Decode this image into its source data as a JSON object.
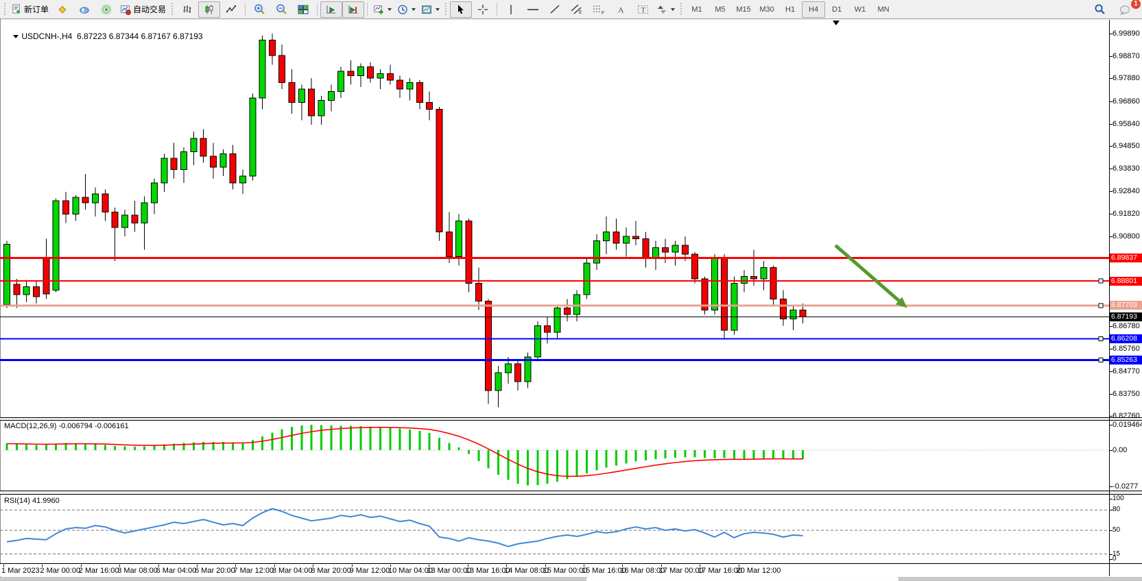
{
  "toolbar": {
    "new_order_label": "新订单",
    "autotrading_label": "自动交易",
    "chat_badge": "1",
    "timeframes": [
      "M1",
      "M5",
      "M15",
      "M30",
      "H1",
      "H4",
      "D1",
      "W1",
      "MN"
    ],
    "selected_timeframe": "H4"
  },
  "chart": {
    "title_symbol": "USDCNH-,H4",
    "title_ohlc": "6.87223 6.87344 6.87167 6.87193"
  },
  "macd_panel": {
    "label": "MACD(12,26,9) -0.006794 -0.006161"
  },
  "rsi_panel": {
    "label": "RSI(14) 41.9960"
  },
  "colors": {
    "bull": "#00d800",
    "bear": "#f40000",
    "candle_outline": "#000000",
    "level_red": "#ff0000",
    "level_blue": "#0000ff",
    "level_salmon": "#e9a28f",
    "bid_line": "#000000",
    "macd_hist": "#00cc00",
    "macd_signal": "#ff0000",
    "rsi_line": "#3f86d8",
    "arrow": "#56992e",
    "badge": "#e0472f"
  },
  "chart_data": {
    "main": {
      "type": "candlestick",
      "symbol": "USDCNH-",
      "timeframe": "H4",
      "last_bid": 6.87193,
      "candles": [
        [
          6.8775,
          6.906,
          6.876,
          6.9045
        ],
        [
          6.8866,
          6.889,
          6.876,
          6.882
        ],
        [
          6.882,
          6.8885,
          6.8785,
          6.8855
        ],
        [
          6.8855,
          6.888,
          6.878,
          6.881
        ],
        [
          6.8985,
          6.907,
          6.88,
          6.8822
        ],
        [
          6.884,
          6.925,
          6.883,
          6.924
        ],
        [
          6.924,
          6.928,
          6.914,
          6.918
        ],
        [
          6.918,
          6.9265,
          6.915,
          6.9255
        ],
        [
          6.9255,
          6.936,
          6.92,
          6.923
        ],
        [
          6.923,
          6.93,
          6.917,
          6.927
        ],
        [
          6.927,
          6.929,
          6.915,
          6.919
        ],
        [
          6.919,
          6.921,
          6.897,
          6.912
        ],
        [
          6.912,
          6.92,
          6.908,
          6.9175
        ],
        [
          6.9175,
          6.924,
          6.91,
          6.914
        ],
        [
          6.914,
          6.926,
          6.902,
          6.923
        ],
        [
          6.923,
          6.934,
          6.918,
          6.932
        ],
        [
          6.932,
          6.945,
          6.928,
          6.943
        ],
        [
          6.943,
          6.95,
          6.934,
          6.938
        ],
        [
          6.938,
          6.948,
          6.932,
          6.946
        ],
        [
          6.946,
          6.955,
          6.94,
          6.952
        ],
        [
          6.952,
          6.956,
          6.941,
          6.944
        ],
        [
          6.944,
          6.95,
          6.934,
          6.939
        ],
        [
          6.939,
          6.947,
          6.935,
          6.945
        ],
        [
          6.945,
          6.949,
          6.929,
          6.932
        ],
        [
          6.932,
          6.938,
          6.927,
          6.935
        ],
        [
          6.935,
          6.972,
          6.933,
          6.97
        ],
        [
          6.97,
          6.998,
          6.965,
          6.996
        ],
        [
          6.996,
          6.9989,
          6.985,
          6.989
        ],
        [
          6.989,
          6.994,
          6.974,
          6.977
        ],
        [
          6.977,
          6.983,
          6.963,
          6.968
        ],
        [
          6.968,
          6.976,
          6.96,
          6.974
        ],
        [
          6.974,
          6.979,
          6.958,
          6.962
        ],
        [
          6.962,
          6.971,
          6.958,
          6.969
        ],
        [
          6.969,
          6.976,
          6.964,
          6.973
        ],
        [
          6.973,
          6.984,
          6.97,
          6.982
        ],
        [
          6.982,
          6.987,
          6.976,
          6.98
        ],
        [
          6.98,
          6.9855,
          6.975,
          6.984
        ],
        [
          6.984,
          6.986,
          6.977,
          6.979
        ],
        [
          6.979,
          6.983,
          6.974,
          6.981
        ],
        [
          6.981,
          6.985,
          6.976,
          6.978
        ],
        [
          6.978,
          6.98,
          6.97,
          6.974
        ],
        [
          6.974,
          6.979,
          6.969,
          6.977
        ],
        [
          6.977,
          6.978,
          6.965,
          6.968
        ],
        [
          6.968,
          6.973,
          6.96,
          6.965
        ],
        [
          6.965,
          6.966,
          6.906,
          6.91
        ],
        [
          6.91,
          6.919,
          6.896,
          6.899
        ],
        [
          6.899,
          6.918,
          6.895,
          6.915
        ],
        [
          6.915,
          6.916,
          6.883,
          6.887
        ],
        [
          6.887,
          6.894,
          6.875,
          6.879
        ],
        [
          6.879,
          6.88,
          6.833,
          6.839
        ],
        [
          6.839,
          6.85,
          6.8315,
          6.847
        ],
        [
          6.847,
          6.854,
          6.842,
          6.851
        ],
        [
          6.851,
          6.853,
          6.839,
          6.843
        ],
        [
          6.843,
          6.856,
          6.84,
          6.854
        ],
        [
          6.854,
          6.87,
          6.852,
          6.868
        ],
        [
          6.868,
          6.872,
          6.86,
          6.865
        ],
        [
          6.865,
          6.877,
          6.862,
          6.876
        ],
        [
          6.876,
          6.88,
          6.87,
          6.873
        ],
        [
          6.873,
          6.884,
          6.87,
          6.882
        ],
        [
          6.882,
          6.898,
          6.88,
          6.896
        ],
        [
          6.896,
          6.909,
          6.893,
          6.906
        ],
        [
          6.906,
          6.917,
          6.9,
          6.91
        ],
        [
          6.91,
          6.916,
          6.902,
          6.905
        ],
        [
          6.905,
          6.912,
          6.899,
          6.908
        ],
        [
          6.908,
          6.915,
          6.904,
          6.907
        ],
        [
          6.907,
          6.91,
          6.894,
          6.898
        ],
        [
          6.898,
          6.906,
          6.893,
          6.903
        ],
        [
          6.903,
          6.907,
          6.896,
          6.901
        ],
        [
          6.901,
          6.906,
          6.895,
          6.904
        ],
        [
          6.904,
          6.908,
          6.897,
          6.9
        ],
        [
          6.9,
          6.901,
          6.887,
          6.889
        ],
        [
          6.889,
          6.89,
          6.873,
          6.875
        ],
        [
          6.875,
          6.9,
          6.873,
          6.898
        ],
        [
          6.898,
          6.9,
          6.862,
          6.866
        ],
        [
          6.866,
          6.89,
          6.864,
          6.887
        ],
        [
          6.887,
          6.893,
          6.883,
          6.89
        ],
        [
          6.89,
          6.902,
          6.886,
          6.889
        ],
        [
          6.889,
          6.897,
          6.884,
          6.894
        ],
        [
          6.894,
          6.895,
          6.877,
          6.88
        ],
        [
          6.88,
          6.884,
          6.868,
          6.871
        ],
        [
          6.871,
          6.877,
          6.866,
          6.875
        ],
        [
          6.875,
          6.878,
          6.869,
          6.87193
        ]
      ],
      "y_axis": {
        "ticks": [
          {
            "label": "6.99890",
            "value": 6.9989
          },
          {
            "label": "6.98870",
            "value": 6.9887
          },
          {
            "label": "6.97880",
            "value": 6.9788
          },
          {
            "label": "6.96860",
            "value": 6.9686
          },
          {
            "label": "6.95840",
            "value": 6.9584
          },
          {
            "label": "6.94850",
            "value": 6.9485
          },
          {
            "label": "6.93830",
            "value": 6.9383
          },
          {
            "label": "6.92840",
            "value": 6.9284
          },
          {
            "label": "6.91820",
            "value": 6.9182
          },
          {
            "label": "6.90800",
            "value": 6.908
          },
          {
            "label": "6.86780",
            "value": 6.8678
          },
          {
            "label": "6.85760",
            "value": 6.8576
          },
          {
            "label": "6.84770",
            "value": 6.8477
          },
          {
            "label": "6.83750",
            "value": 6.8375
          },
          {
            "label": "6.82760",
            "value": 6.8276
          }
        ]
      },
      "h_lines": [
        {
          "value": 6.89837,
          "label": "6.89837",
          "color": "#ff0000",
          "width": 3,
          "handle": false
        },
        {
          "value": 6.88801,
          "label": "6.88801",
          "color": "#ff0000",
          "width": 2,
          "handle": true
        },
        {
          "value": 6.87703,
          "label": "6.87703",
          "color": "#e9a28f",
          "width": 3,
          "handle": true
        },
        {
          "value": 6.87193,
          "label": "6.87193",
          "color": "#000000",
          "width": 1,
          "handle": false
        },
        {
          "value": 6.86208,
          "label": "6.86208",
          "color": "#0000ff",
          "width": 2,
          "handle": true
        },
        {
          "value": 6.85263,
          "label": "6.85263",
          "color": "#0000ff",
          "width": 3,
          "handle": true
        }
      ],
      "arrow": {
        "bar1": 84.3,
        "price1": 6.904,
        "bar2": 91.6,
        "price2": 6.876,
        "color": "#56992e"
      }
    },
    "macd": {
      "type": "bar",
      "params": "12,26,9",
      "last_main": -0.006794,
      "last_signal": -0.006161,
      "histogram": [
        0.005,
        0.0046,
        0.0042,
        0.0039,
        0.0042,
        0.005,
        0.0055,
        0.0053,
        0.005,
        0.0046,
        0.004,
        0.0032,
        0.0028,
        0.0027,
        0.003,
        0.0036,
        0.0044,
        0.005,
        0.0055,
        0.006,
        0.0063,
        0.0063,
        0.0062,
        0.0058,
        0.0056,
        0.0075,
        0.0105,
        0.0135,
        0.016,
        0.0178,
        0.019,
        0.0195,
        0.0193,
        0.019,
        0.0188,
        0.0188,
        0.0185,
        0.0182,
        0.0178,
        0.0172,
        0.0165,
        0.0158,
        0.0148,
        0.0132,
        0.0095,
        0.0055,
        0.002,
        -0.003,
        -0.0085,
        -0.014,
        -0.019,
        -0.023,
        -0.0258,
        -0.027,
        -0.0268,
        -0.0258,
        -0.0242,
        -0.0222,
        -0.02,
        -0.0178,
        -0.0155,
        -0.0135,
        -0.0118,
        -0.0102,
        -0.0088,
        -0.0078,
        -0.0068,
        -0.0062,
        -0.0057,
        -0.0055,
        -0.0056,
        -0.006,
        -0.0063,
        -0.006,
        -0.0068,
        -0.007,
        -0.0066,
        -0.0062,
        -0.0062,
        -0.0066,
        -0.007,
        -0.006794
      ],
      "y_ticks": [
        {
          "label": "0.019464",
          "value": 0.019464
        },
        {
          "label": "0.00",
          "value": 0
        },
        {
          "label": "-0.0277",
          "value": -0.0277
        }
      ]
    },
    "rsi": {
      "type": "line",
      "period": 14,
      "last": 41.996,
      "values": [
        33,
        35,
        38,
        37,
        36,
        45,
        52,
        54,
        53,
        57,
        55,
        50,
        46,
        49,
        52,
        55,
        58,
        62,
        60,
        63,
        66,
        62,
        58,
        60,
        57,
        68,
        76,
        82,
        78,
        72,
        68,
        64,
        66,
        68,
        72,
        70,
        73,
        69,
        71,
        67,
        63,
        65,
        60,
        56,
        40,
        38,
        34,
        39,
        36,
        34,
        31,
        26,
        30,
        32,
        34,
        38,
        41,
        43,
        41,
        44,
        48,
        46,
        48,
        52,
        55,
        52,
        54,
        50,
        52,
        49,
        51,
        46,
        40,
        47,
        39,
        45,
        47,
        46,
        44,
        40,
        43,
        41.996
      ],
      "levels": [
        80,
        50,
        15
      ],
      "y_ticks": [
        {
          "label": "100",
          "value": 100
        },
        {
          "label": "80",
          "value": 80
        },
        {
          "label": "50",
          "value": 50
        },
        {
          "label": "15",
          "value": 15
        },
        {
          "label": "0",
          "value": 0
        }
      ]
    },
    "x_axis": {
      "labels": [
        "1 Mar 2023",
        "2 Mar 00:00",
        "2 Mar 16:00",
        "3 Mar 08:00",
        "6 Mar 04:00",
        "6 Mar 20:00",
        "7 Mar 12:00",
        "8 Mar 04:00",
        "8 Mar 20:00",
        "9 Mar 12:00",
        "10 Mar 04:00",
        "13 Mar 00:00",
        "13 Mar 16:00",
        "14 Mar 08:00",
        "15 Mar 00:00",
        "15 Mar 16:00",
        "16 Mar 08:00",
        "17 Mar 00:00",
        "17 Mar 16:00",
        "20 Mar 12:00"
      ]
    }
  }
}
